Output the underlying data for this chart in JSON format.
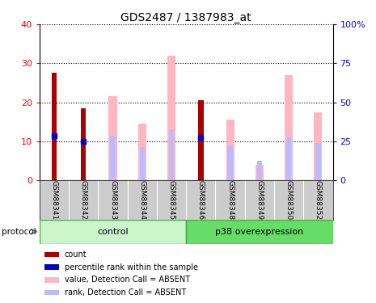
{
  "title": "GDS2487 / 1387983_at",
  "samples": [
    "GSM88341",
    "GSM88342",
    "GSM88343",
    "GSM88344",
    "GSM88345",
    "GSM88346",
    "GSM88348",
    "GSM88349",
    "GSM88350",
    "GSM88352"
  ],
  "count_values": [
    27.5,
    18.5,
    0,
    0,
    0,
    20.5,
    0,
    0,
    0,
    0
  ],
  "rank_values": [
    11.5,
    10.0,
    0,
    0,
    0,
    11.0,
    0,
    0,
    0,
    0
  ],
  "pink_bar_values": [
    0,
    0,
    21.5,
    14.5,
    32.0,
    0,
    15.5,
    4.0,
    27.0,
    17.5
  ],
  "blue_bar_values": [
    0,
    0,
    11.5,
    8.5,
    13.0,
    0,
    9.0,
    5.0,
    11.0,
    9.5
  ],
  "ylim_left": [
    0,
    40
  ],
  "ylim_right": [
    0,
    100
  ],
  "yticks_left": [
    0,
    10,
    20,
    30,
    40
  ],
  "yticks_right": [
    0,
    25,
    50,
    75,
    100
  ],
  "ytick_labels_left": [
    "0",
    "10",
    "20",
    "30",
    "40"
  ],
  "ytick_labels_right": [
    "0",
    "25",
    "50",
    "75",
    "100%"
  ],
  "color_count": "#AA0000",
  "color_rank": "#0000CC",
  "color_pink": "#FFB6C1",
  "color_blue_light": "#BBBBFF",
  "legend_items": [
    {
      "label": "count",
      "color": "#AA0000"
    },
    {
      "label": "percentile rank within the sample",
      "color": "#0000CC"
    },
    {
      "label": "value, Detection Call = ABSENT",
      "color": "#FFB6C1"
    },
    {
      "label": "rank, Detection Call = ABSENT",
      "color": "#BBBBFF"
    }
  ],
  "control_color_light": "#ccf5cc",
  "control_color_dark": "#55dd55",
  "p38_color_light": "#66dd66",
  "p38_color_dark": "#00bb00"
}
